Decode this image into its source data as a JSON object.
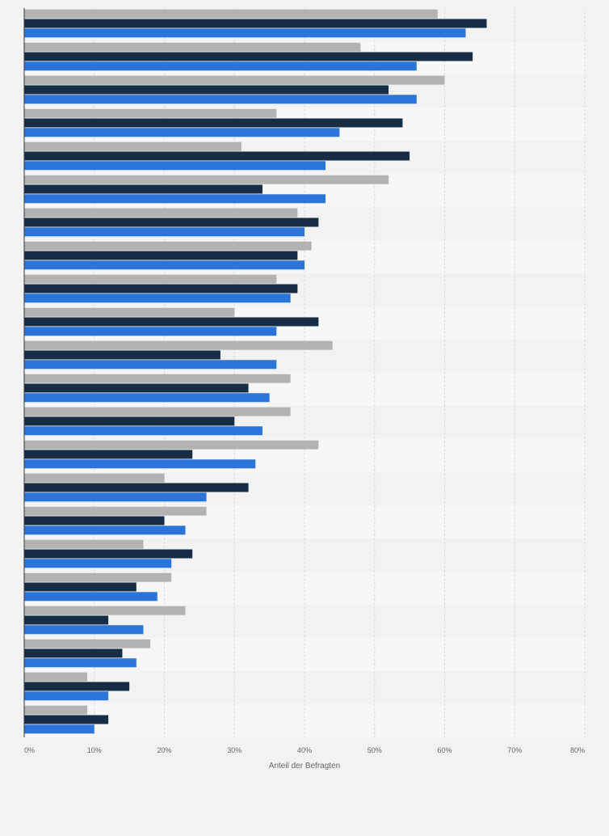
{
  "chart_data": {
    "type": "bar",
    "orientation": "horizontal",
    "xlabel": "Anteil der Befragten",
    "xlim": [
      0,
      80
    ],
    "x_ticks": [
      "0%",
      "10%",
      "20%",
      "30%",
      "40%",
      "50%",
      "60%",
      "70%",
      "80%"
    ],
    "grid": true,
    "legend": "none",
    "categories": [
      "",
      "",
      "",
      "",
      "",
      "",
      "",
      "",
      "",
      "",
      "",
      "",
      "",
      "",
      "",
      "",
      "",
      "",
      "",
      "",
      "",
      ""
    ],
    "series": [
      {
        "color": "#b3b3b3",
        "values": [
          59,
          48,
          60,
          36,
          31,
          52,
          39,
          41,
          36,
          30,
          44,
          38,
          38,
          42,
          20,
          26,
          17,
          21,
          23,
          18,
          9,
          9
        ]
      },
      {
        "color": "#172c45",
        "values": [
          66,
          64,
          52,
          54,
          55,
          34,
          42,
          39,
          39,
          42,
          28,
          32,
          30,
          24,
          32,
          20,
          24,
          16,
          12,
          14,
          15,
          12
        ]
      },
      {
        "color": "#2b74d9",
        "values": [
          63,
          56,
          56,
          45,
          43,
          43,
          40,
          40,
          38,
          36,
          36,
          35,
          34,
          33,
          26,
          23,
          21,
          19,
          17,
          16,
          12,
          10
        ]
      }
    ]
  }
}
